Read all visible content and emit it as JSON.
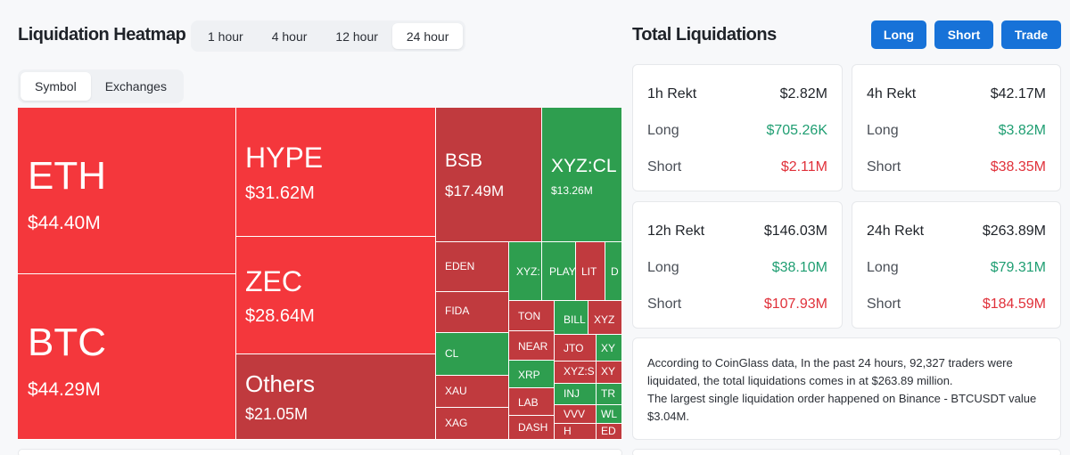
{
  "heatmap": {
    "title": "Liquidation Heatmap",
    "time_tabs": [
      "1 hour",
      "4 hour",
      "12 hour",
      "24 hour"
    ],
    "active_time": "24 hour",
    "view_tabs": [
      "Symbol",
      "Exchanges"
    ],
    "active_view": "Symbol",
    "tiles": {
      "eth": {
        "symbol": "ETH",
        "value": "$44.40M"
      },
      "btc": {
        "symbol": "BTC",
        "value": "$44.29M"
      },
      "hype": {
        "symbol": "HYPE",
        "value": "$31.62M"
      },
      "zec": {
        "symbol": "ZEC",
        "value": "$28.64M"
      },
      "others": {
        "symbol": "Others",
        "value": "$21.05M"
      },
      "bsb": {
        "symbol": "BSB",
        "value": "$17.49M"
      },
      "xyzcl": {
        "symbol": "XYZ:CL",
        "value": "$13.26M"
      },
      "eden": "EDEN",
      "fida": "FIDA",
      "cl": "CL",
      "xau": "XAU",
      "xag": "XAG",
      "xyz1": "XYZ:",
      "play": "PLAY",
      "lit": "LIT",
      "d": "D",
      "ton": "TON",
      "bill": "BILL",
      "xyz2": "XYZ",
      "near": "NEAR",
      "jto": "JTO",
      "xy1": "XY",
      "xrp": "XRP",
      "xyzs": "XYZ:S",
      "xy2": "XY",
      "lab": "LAB",
      "inj": "INJ",
      "tr": "TR",
      "vvv": "VVV",
      "wl": "WL",
      "dash": "DASH",
      "h": "H",
      "ed": "ED"
    }
  },
  "totals": {
    "title": "Total Liquidations",
    "buttons": [
      "Long",
      "Short",
      "Trade"
    ],
    "long_label": "Long",
    "short_label": "Short",
    "cards": [
      {
        "title": "1h Rekt",
        "total": "$2.82M",
        "long": "$705.26K",
        "short": "$2.11M"
      },
      {
        "title": "4h Rekt",
        "total": "$42.17M",
        "long": "$3.82M",
        "short": "$38.35M"
      },
      {
        "title": "12h Rekt",
        "total": "$146.03M",
        "long": "$38.10M",
        "short": "$107.93M"
      },
      {
        "title": "24h Rekt",
        "total": "$263.89M",
        "long": "$79.31M",
        "short": "$184.59M"
      }
    ],
    "summary": "According to CoinGlass data, In the past 24 hours, 92,327 traders were liquidated, the total liquidations comes in at $263.89 million.",
    "summary2": "The largest single liquidation order happened on Binance - BTCUSDT value $3.04M."
  },
  "colors": {
    "red": "#f4373c",
    "dark_red": "#c03a3e",
    "green": "#2e9e4f",
    "accent": "#1772d8",
    "positive": "#1f9e72",
    "negative": "#e0313a"
  }
}
